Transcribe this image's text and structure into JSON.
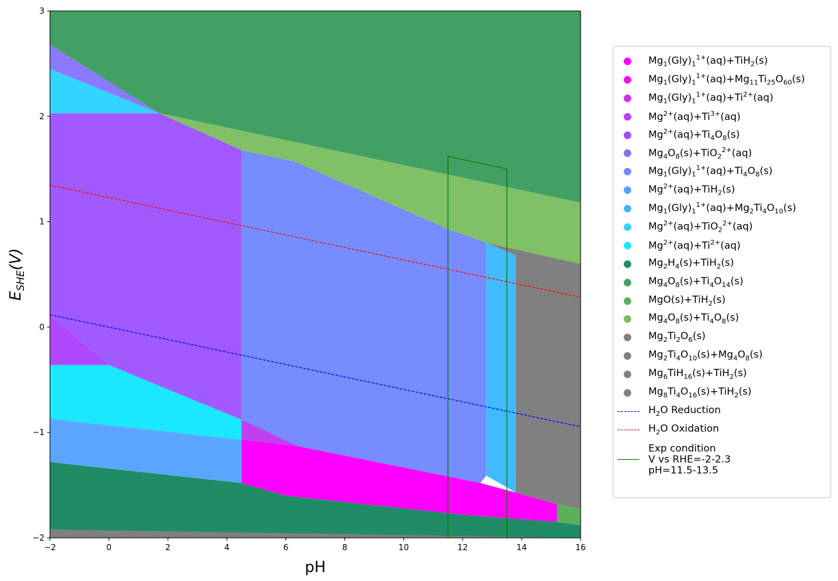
{
  "chart_data": {
    "type": "area",
    "title": "",
    "xlabel": "pH",
    "ylabel_main": "E",
    "ylabel_sub": "SHE",
    "ylabel_suffix": "(V)",
    "xlim": [
      -2,
      16
    ],
    "ylim": [
      -2,
      3
    ],
    "x_ticks": [
      -2,
      0,
      2,
      4,
      6,
      8,
      10,
      12,
      14,
      16
    ],
    "y_ticks": [
      -2,
      -1,
      0,
      1,
      2,
      3
    ],
    "x_tick_labels": [
      "−2",
      "0",
      "2",
      "4",
      "6",
      "8",
      "10",
      "12",
      "14",
      "16"
    ],
    "y_tick_labels": [
      "−2",
      "−1",
      "0",
      "1",
      "2",
      "3"
    ],
    "grid": false,
    "legend_position": "right",
    "regions": [
      {
        "color": "#808080",
        "points": [
          [
            -2,
            -2
          ],
          [
            16,
            -2
          ],
          [
            16,
            -1.92
          ],
          [
            -2,
            -1.92
          ]
        ]
      },
      {
        "color": "#1f8c66",
        "points": [
          [
            -2,
            -1.92
          ],
          [
            16,
            -2
          ],
          [
            16,
            -1.88
          ],
          [
            15.2,
            -1.85
          ],
          [
            12,
            -1.78
          ],
          [
            6,
            -1.6
          ],
          [
            4.5,
            -1.48
          ],
          [
            -2,
            -1.28
          ]
        ]
      },
      {
        "color": "#5aa6ff",
        "points": [
          [
            -2,
            -1.28
          ],
          [
            4.5,
            -1.48
          ],
          [
            4.5,
            -1.07
          ],
          [
            -2,
            -0.87
          ]
        ]
      },
      {
        "color": "#19e8ff",
        "points": [
          [
            -2,
            -0.87
          ],
          [
            4.5,
            -1.07
          ],
          [
            4.5,
            -0.88
          ],
          [
            0,
            -0.36
          ],
          [
            -2,
            -0.36
          ]
        ]
      },
      {
        "color": "#b048ff",
        "points": [
          [
            -2,
            -0.36
          ],
          [
            0,
            -0.36
          ],
          [
            -2,
            0.12
          ]
        ]
      },
      {
        "color": "#a05aff",
        "points": [
          [
            -2,
            0.12
          ],
          [
            0,
            -0.36
          ],
          [
            4.5,
            -0.88
          ],
          [
            4.5,
            1.68
          ],
          [
            1.7,
            2.03
          ],
          [
            -2,
            2.03
          ]
        ]
      },
      {
        "color": "#33d4ff",
        "points": [
          [
            -2,
            2.03
          ],
          [
            1.7,
            2.03
          ],
          [
            -2,
            2.45
          ]
        ]
      },
      {
        "color": "#8a7aff",
        "points": [
          [
            -2,
            2.45
          ],
          [
            1.7,
            2.03
          ],
          [
            -2,
            2.68
          ]
        ]
      },
      {
        "color": "#42a064",
        "points": [
          [
            -2,
            2.68
          ],
          [
            1.7,
            2.03
          ],
          [
            16,
            1.18
          ],
          [
            16,
            3
          ],
          [
            -2,
            3
          ]
        ]
      },
      {
        "color": "#80c066",
        "points": [
          [
            1.7,
            2.03
          ],
          [
            16,
            1.18
          ],
          [
            16,
            0.6
          ],
          [
            12.8,
            0.8
          ],
          [
            11.5,
            0.93
          ],
          [
            6.3,
            1.57
          ],
          [
            4.5,
            1.68
          ]
        ]
      },
      {
        "color": "#778cff",
        "points": [
          [
            4.5,
            1.68
          ],
          [
            6.3,
            1.57
          ],
          [
            11.5,
            0.93
          ],
          [
            12.8,
            0.8
          ],
          [
            12.8,
            -1.41
          ],
          [
            12.6,
            -1.48
          ],
          [
            6.4,
            -1.13
          ],
          [
            4.5,
            -1.07
          ]
        ]
      },
      {
        "color": "#c040f0",
        "points": [
          [
            4.5,
            -0.88
          ],
          [
            6.4,
            -1.13
          ],
          [
            4.5,
            -1.07
          ]
        ]
      },
      {
        "color": "#ff00ff",
        "points": [
          [
            4.5,
            -1.07
          ],
          [
            6.4,
            -1.13
          ],
          [
            12.6,
            -1.48
          ],
          [
            13.8,
            -1.57
          ],
          [
            15.2,
            -1.68
          ],
          [
            15.2,
            -1.85
          ],
          [
            12,
            -1.78
          ],
          [
            6,
            -1.6
          ],
          [
            4.5,
            -1.48
          ]
        ]
      },
      {
        "color": "#40bbff",
        "points": [
          [
            12.8,
            0.8
          ],
          [
            13.8,
            0.68
          ],
          [
            13.8,
            -1.57
          ],
          [
            12.8,
            -1.41
          ]
        ]
      },
      {
        "color": "#808080",
        "points": [
          [
            12.8,
            0.8
          ],
          [
            16,
            0.6
          ],
          [
            16,
            -1.73
          ],
          [
            15.2,
            -1.68
          ],
          [
            13.8,
            -1.57
          ],
          [
            13.8,
            0.68
          ]
        ]
      },
      {
        "color": "#5cb05c",
        "points": [
          [
            15.2,
            -1.68
          ],
          [
            16,
            -1.73
          ],
          [
            16,
            -1.88
          ],
          [
            15.2,
            -1.85
          ]
        ]
      }
    ],
    "series": [
      {
        "name": "H2O Reduction",
        "style": "dashed",
        "color": "#0000ff",
        "x": [
          -2,
          16
        ],
        "y": [
          0.118,
          -0.946
        ]
      },
      {
        "name": "H2O Oxidation",
        "style": "dashed",
        "color": "#ff0000",
        "x": [
          -2,
          16
        ],
        "y": [
          1.347,
          0.283
        ]
      },
      {
        "name": "Exp condition",
        "style": "solid",
        "color": "#008000",
        "x": [
          11.5,
          11.5,
          13.5,
          13.5
        ],
        "y": [
          -2,
          1.62,
          1.5,
          -2
        ]
      }
    ]
  },
  "legend": {
    "items": [
      {
        "color": "#ff00ff",
        "parts": [
          "Mg",
          {
            "sub": "1"
          },
          "(Gly)",
          {
            "sub": "1"
          },
          {
            "sup": "1+"
          },
          "(aq)+TiH",
          {
            "sub": "2"
          },
          "(s)"
        ]
      },
      {
        "color": "#ee10ee",
        "parts": [
          "Mg",
          {
            "sub": "1"
          },
          "(Gly)",
          {
            "sub": "1"
          },
          {
            "sup": "1+"
          },
          "(aq)+Mg",
          {
            "sub": "11"
          },
          "Ti",
          {
            "sub": "25"
          },
          "O",
          {
            "sub": "60"
          },
          "(s)"
        ]
      },
      {
        "color": "#d030f0",
        "parts": [
          "Mg",
          {
            "sub": "1"
          },
          "(Gly)",
          {
            "sub": "1"
          },
          {
            "sup": "1+"
          },
          "(aq)+Ti",
          {
            "sup": "2+"
          },
          "(aq)"
        ]
      },
      {
        "color": "#b840f0",
        "parts": [
          "Mg",
          {
            "sup": "2+"
          },
          "(aq)+Ti",
          {
            "sup": "3+"
          },
          "(aq)"
        ]
      },
      {
        "color": "#a050f0",
        "parts": [
          "Mg",
          {
            "sup": "2+"
          },
          "(aq)+Ti",
          {
            "sub": "4"
          },
          "O",
          {
            "sub": "8"
          },
          "(s)"
        ]
      },
      {
        "color": "#8a70f0",
        "parts": [
          "Mg",
          {
            "sub": "4"
          },
          "O",
          {
            "sub": "8"
          },
          "(s)+TiO",
          {
            "sub": "2"
          },
          {
            "sup": "2+"
          },
          "(aq)"
        ]
      },
      {
        "color": "#7888f8",
        "parts": [
          "Mg",
          {
            "sub": "1"
          },
          "(Gly)",
          {
            "sub": "1"
          },
          {
            "sup": "1+"
          },
          "(aq)+Ti",
          {
            "sub": "4"
          },
          "O",
          {
            "sub": "8"
          },
          "(s)"
        ]
      },
      {
        "color": "#5aa0ff",
        "parts": [
          "Mg",
          {
            "sup": "2+"
          },
          "(aq)+TiH",
          {
            "sub": "2"
          },
          "(s)"
        ]
      },
      {
        "color": "#40b8f8",
        "parts": [
          "Mg",
          {
            "sub": "1"
          },
          "(Gly)",
          {
            "sub": "1"
          },
          {
            "sup": "1+"
          },
          "(aq)+Mg",
          {
            "sub": "2"
          },
          "Ti",
          {
            "sub": "4"
          },
          "O",
          {
            "sub": "10"
          },
          "(s)"
        ]
      },
      {
        "color": "#30d0f8",
        "parts": [
          "Mg",
          {
            "sup": "2+"
          },
          "(aq)+TiO",
          {
            "sub": "2"
          },
          {
            "sup": "2+"
          },
          "(aq)"
        ]
      },
      {
        "color": "#18e8ff",
        "parts": [
          "Mg",
          {
            "sup": "2+"
          },
          "(aq)+Ti",
          {
            "sup": "2+"
          },
          "(aq)"
        ]
      },
      {
        "color": "#1f8c66",
        "parts": [
          "Mg",
          {
            "sub": "2"
          },
          "H",
          {
            "sub": "4"
          },
          "(s)+TiH",
          {
            "sub": "2"
          },
          "(s)"
        ]
      },
      {
        "color": "#40a064",
        "parts": [
          "Mg",
          {
            "sub": "4"
          },
          "O",
          {
            "sub": "8"
          },
          "(s)+Ti",
          {
            "sub": "4"
          },
          "O",
          {
            "sub": "14"
          },
          "(s)"
        ]
      },
      {
        "color": "#5cb05c",
        "parts": [
          "MgO(s)+TiH",
          {
            "sub": "2"
          },
          "(s)"
        ]
      },
      {
        "color": "#7cbc60",
        "parts": [
          "Mg",
          {
            "sub": "4"
          },
          "O",
          {
            "sub": "8"
          },
          "(s)+Ti",
          {
            "sub": "4"
          },
          "O",
          {
            "sub": "8"
          },
          "(s)"
        ]
      },
      {
        "color": "#808080",
        "parts": [
          "Mg",
          {
            "sub": "2"
          },
          "Ti",
          {
            "sub": "2"
          },
          "O",
          {
            "sub": "6"
          },
          "(s)"
        ]
      },
      {
        "color": "#808080",
        "parts": [
          "Mg",
          {
            "sub": "2"
          },
          "Ti",
          {
            "sub": "4"
          },
          "O",
          {
            "sub": "10"
          },
          "(s)+Mg",
          {
            "sub": "4"
          },
          "O",
          {
            "sub": "8"
          },
          "(s)"
        ]
      },
      {
        "color": "#808080",
        "parts": [
          "Mg",
          {
            "sub": "6"
          },
          "TiH",
          {
            "sub": "16"
          },
          "(s)+TiH",
          {
            "sub": "2"
          },
          "(s)"
        ]
      },
      {
        "color": "#808080",
        "parts": [
          "Mg",
          {
            "sub": "8"
          },
          "Ti",
          {
            "sub": "4"
          },
          "O",
          {
            "sub": "16"
          },
          "(s)+TiH",
          {
            "sub": "2"
          },
          "(s)"
        ]
      }
    ],
    "lines": [
      {
        "color": "#0000ff",
        "style": "dashed",
        "parts": [
          "H",
          {
            "sub": "2"
          },
          "O Reduction"
        ]
      },
      {
        "color": "#ff0000",
        "style": "dashed",
        "parts": [
          "H",
          {
            "sub": "2"
          },
          "O Oxidation"
        ]
      },
      {
        "color": "#008000",
        "style": "solid",
        "lines_text": [
          "Exp condition",
          "V vs RHE=-2-2.3",
          "pH=11.5-13.5"
        ]
      }
    ]
  }
}
